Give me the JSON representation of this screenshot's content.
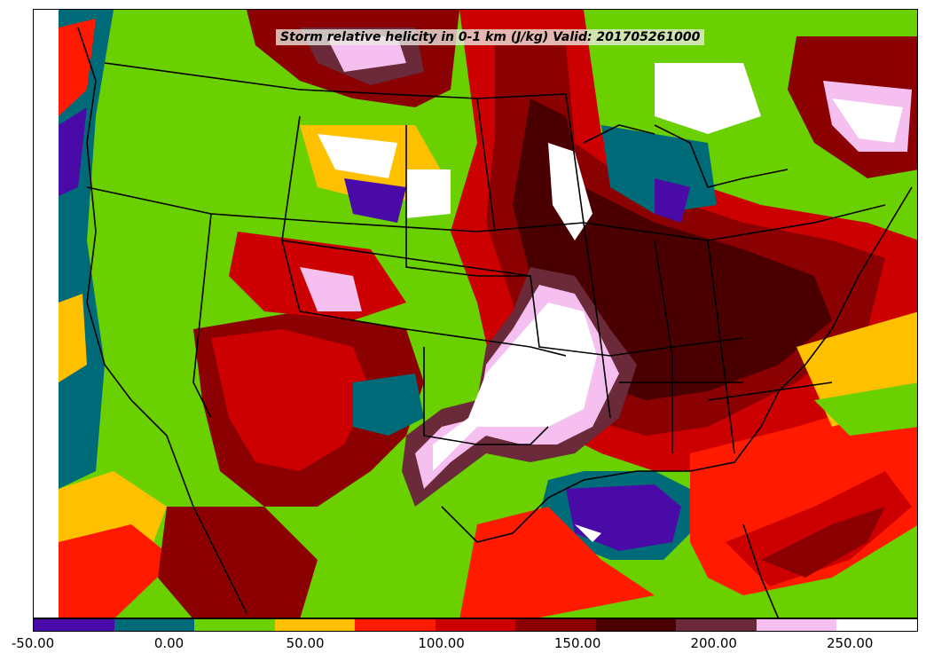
{
  "title": "Storm relative helicity in 0-1 km (J/kg) Valid: 201705261000",
  "colorbar": {
    "colors": [
      "#4a0aa8",
      "#006b78",
      "#6ad000",
      "#ffc000",
      "#ff1a00",
      "#cc0000",
      "#8b0000",
      "#4a0000",
      "#6b2a3a",
      "#f5c0f0",
      "#ffffff"
    ],
    "labels": [
      "-50.00",
      "0.00",
      "50.00",
      "100.00",
      "150.00",
      "200.00",
      "250.00"
    ]
  }
}
